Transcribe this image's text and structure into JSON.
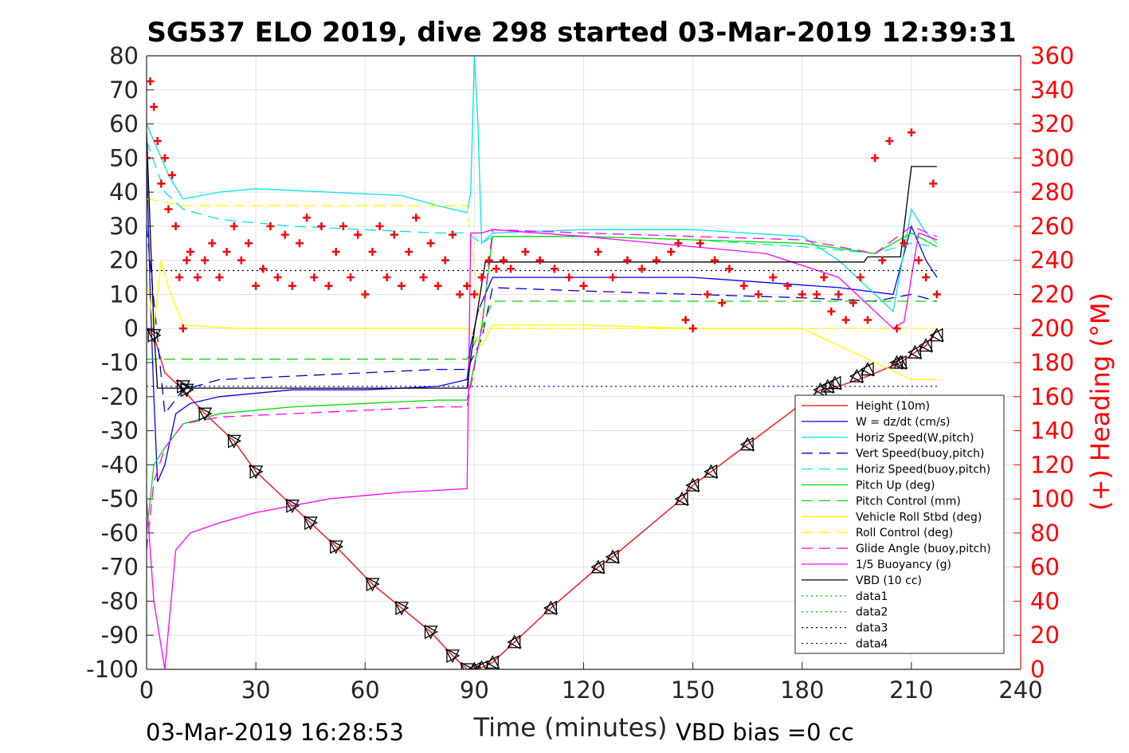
{
  "chart_data": {
    "type": "line",
    "title": "SG537 ELO 2019, dive 298 started 03-Mar-2019 12:39:31",
    "xlabel": "Time (minutes)",
    "ylabel": "",
    "y2label": "(+) Heading (°M)",
    "xlim": [
      0,
      240
    ],
    "ylim": [
      -100,
      80
    ],
    "y2lim": [
      0,
      360
    ],
    "xticks": [
      "0",
      "30",
      "60",
      "90",
      "120",
      "150",
      "180",
      "210",
      "240"
    ],
    "yticks": [
      "80",
      "70",
      "60",
      "50",
      "40",
      "30",
      "20",
      "10",
      "0",
      "-10",
      "-20",
      "-30",
      "-40",
      "-50",
      "-60",
      "-70",
      "-80",
      "-90",
      "-100"
    ],
    "y2ticks": [
      "360",
      "340",
      "320",
      "300",
      "280",
      "260",
      "240",
      "220",
      "200",
      "180",
      "160",
      "140",
      "120",
      "100",
      "80",
      "60",
      "40",
      "20",
      "0"
    ],
    "grid": true,
    "legend_position": "bottom-right",
    "footer_left": "03-Mar-2019 16:28:53",
    "footer_right": "VBD bias =0 cc",
    "series": [
      {
        "name": "Height (10m)",
        "color": "#ff0000",
        "style": "solid",
        "x": [
          0,
          2,
          5,
          10,
          16,
          24,
          30,
          40,
          45,
          52,
          62,
          70,
          78,
          84,
          88,
          92,
          95,
          101,
          111,
          124,
          128,
          147,
          150,
          155,
          165,
          185,
          190,
          198,
          207,
          211,
          214,
          217
        ],
        "y": [
          0,
          -2,
          -13,
          -18,
          -25,
          -33,
          -42,
          -52,
          -57,
          -64,
          -75,
          -82,
          -89,
          -96,
          -100,
          -99.5,
          -98,
          -92,
          -82,
          -70,
          -67,
          -50,
          -46,
          -42,
          -34,
          -18,
          -17,
          -14,
          -10,
          -7,
          -5,
          0
        ]
      },
      {
        "name": "W = dz/dt (cm/s)",
        "color": "#0000ff",
        "style": "solid",
        "x": [
          0,
          1,
          2,
          3,
          5,
          8,
          12,
          20,
          40,
          60,
          80,
          88,
          89,
          91,
          95,
          110,
          150,
          190,
          205,
          210,
          214,
          217
        ],
        "y": [
          50,
          10,
          -20,
          -45,
          -40,
          -25,
          -22,
          -20,
          -18,
          -18,
          -17,
          -15,
          -5,
          5,
          15,
          15,
          15,
          12,
          10,
          30,
          20,
          15
        ]
      },
      {
        "name": "Horiz Speed(W,pitch)",
        "color": "#00e5e5",
        "style": "solid",
        "x": [
          0,
          2,
          4,
          6,
          10,
          20,
          30,
          50,
          70,
          80,
          88,
          89,
          90,
          91,
          92,
          95,
          120,
          150,
          180,
          190,
          200,
          205,
          210,
          214,
          217
        ],
        "y": [
          60,
          55,
          50,
          45,
          38,
          40,
          41,
          40,
          39,
          36,
          34,
          40,
          80,
          60,
          25,
          28,
          29,
          29,
          27,
          20,
          10,
          5,
          35,
          28,
          25
        ]
      },
      {
        "name": "Vert Speed(buoy,pitch)",
        "color": "#0000cc",
        "style": "dashed",
        "x": [
          0,
          5,
          10,
          20,
          40,
          60,
          80,
          88,
          92,
          95,
          120,
          150,
          180,
          200,
          210,
          217
        ],
        "y": [
          30,
          -25,
          -18,
          -15,
          -14,
          -13,
          -12,
          -12,
          -3,
          12,
          11,
          10,
          9,
          8,
          10,
          8
        ]
      },
      {
        "name": "Horiz Speed(buoy,pitch)",
        "color": "#00e5e5",
        "style": "dashed",
        "x": [
          0,
          5,
          10,
          20,
          40,
          60,
          80,
          88,
          92,
          95,
          120,
          150,
          180,
          200,
          210,
          217
        ],
        "y": [
          55,
          40,
          35,
          32,
          30,
          29,
          28,
          28,
          25,
          27,
          27,
          26,
          24,
          22,
          25,
          24
        ]
      },
      {
        "name": "Pitch Up (deg)",
        "color": "#00dd00",
        "style": "solid",
        "x": [
          0,
          2,
          5,
          10,
          20,
          40,
          60,
          80,
          88,
          92,
          95,
          120,
          150,
          180,
          200,
          210,
          217
        ],
        "y": [
          -60,
          -40,
          -35,
          -28,
          -25,
          -23,
          -22,
          -21,
          -21,
          0,
          27,
          27,
          26,
          25,
          22,
          28,
          24
        ]
      },
      {
        "name": "Pitch Control (mm)",
        "color": "#00dd00",
        "style": "dashed",
        "x": [
          0,
          5,
          88,
          92,
          95,
          217
        ],
        "y": [
          -9,
          -9,
          -9,
          0,
          8,
          8
        ]
      },
      {
        "name": "Vehicle Roll Stbd (deg)",
        "color": "#ffff00",
        "style": "solid",
        "x": [
          0,
          2,
          4,
          6,
          10,
          25,
          50,
          75,
          88,
          92,
          95,
          120,
          150,
          180,
          200,
          210,
          217
        ],
        "y": [
          15,
          0,
          20,
          12,
          1,
          0,
          0,
          0,
          0,
          -5,
          1,
          1,
          0,
          0,
          -10,
          -15,
          -15
        ]
      },
      {
        "name": "Roll Control (deg)",
        "color": "#ffff00",
        "style": "dashed",
        "x": [
          0,
          5,
          10,
          88,
          92,
          95,
          217
        ],
        "y": [
          38,
          37,
          36,
          36,
          0,
          0,
          0
        ]
      },
      {
        "name": "Glide Angle (buoy,pitch)",
        "color": "#ff00ff",
        "style": "dashed",
        "x": [
          0,
          2,
          5,
          10,
          20,
          40,
          60,
          80,
          88,
          92,
          95,
          120,
          150,
          180,
          200,
          210,
          217
        ],
        "y": [
          -65,
          -45,
          -35,
          -28,
          -26,
          -25,
          -24,
          -23,
          -23,
          0,
          29,
          28,
          27,
          26,
          22,
          30,
          27
        ]
      },
      {
        "name": "1/5 Buoyancy (g)",
        "color": "#ff00ff",
        "style": "solid",
        "x": [
          0,
          2,
          5,
          8,
          12,
          20,
          30,
          40,
          50,
          60,
          70,
          80,
          88,
          89,
          92,
          95,
          120,
          150,
          170,
          190,
          200,
          205,
          208,
          212,
          217
        ],
        "y": [
          -50,
          -80,
          -100,
          -65,
          -60,
          -57,
          -54,
          -52,
          -50,
          -49,
          -48,
          -47.5,
          -47,
          28,
          28,
          29,
          27,
          24,
          22,
          15,
          5,
          0,
          2,
          28,
          26
        ]
      },
      {
        "name": "VBD (10 cc)",
        "color": "#000000",
        "style": "solid",
        "x": [
          0,
          2,
          3,
          88,
          90,
          93,
          95,
          180,
          197,
          198,
          205,
          207,
          210,
          217
        ],
        "y": [
          58,
          0,
          -17.5,
          -17.5,
          -0.5,
          19.5,
          19.5,
          19.5,
          19.5,
          21,
          21,
          21,
          47.5,
          47.5
        ]
      },
      {
        "name": "data1",
        "color": "#00dd00",
        "style": "dotted",
        "x": [],
        "y": []
      },
      {
        "name": "data2",
        "color": "#00dd00",
        "style": "dotted",
        "x": [],
        "y": []
      },
      {
        "name": "data3",
        "color": "#000000",
        "style": "dotted",
        "x": [
          0,
          217
        ],
        "y": [
          17,
          17
        ]
      },
      {
        "name": "data4",
        "color": "#0000ff",
        "style": "dotted",
        "x": [
          0,
          217
        ],
        "y": [
          -17,
          -17
        ]
      }
    ],
    "heading": {
      "name": "(+) Heading (°M)",
      "color": "#ff0000",
      "marker": "+",
      "x": [
        0,
        1,
        2,
        3,
        4,
        5,
        6,
        7,
        8,
        9,
        10,
        11,
        12,
        14,
        16,
        18,
        20,
        22,
        24,
        26,
        28,
        30,
        32,
        34,
        36,
        38,
        40,
        42,
        44,
        46,
        48,
        50,
        52,
        54,
        56,
        58,
        60,
        62,
        64,
        66,
        68,
        70,
        72,
        74,
        76,
        78,
        80,
        82,
        84,
        86,
        88,
        90,
        92,
        94,
        96,
        98,
        100,
        104,
        108,
        112,
        116,
        120,
        124,
        128,
        132,
        136,
        140,
        144,
        146,
        148,
        150,
        152,
        154,
        156,
        158,
        160,
        164,
        168,
        172,
        176,
        180,
        184,
        186,
        188,
        190,
        192,
        194,
        196,
        198,
        200,
        202,
        204,
        206,
        208,
        210,
        212,
        214,
        216,
        217
      ],
      "y": [
        300,
        345,
        330,
        310,
        285,
        300,
        270,
        290,
        260,
        230,
        200,
        240,
        245,
        230,
        240,
        250,
        230,
        245,
        260,
        240,
        250,
        225,
        235,
        260,
        230,
        255,
        225,
        250,
        265,
        230,
        260,
        225,
        245,
        260,
        230,
        255,
        220,
        245,
        260,
        230,
        255,
        225,
        245,
        265,
        230,
        250,
        225,
        240,
        255,
        220,
        225,
        220,
        230,
        240,
        235,
        240,
        235,
        245,
        240,
        235,
        230,
        225,
        245,
        230,
        240,
        235,
        240,
        245,
        250,
        205,
        200,
        250,
        220,
        240,
        215,
        235,
        225,
        220,
        230,
        225,
        220,
        220,
        230,
        210,
        220,
        205,
        215,
        230,
        205,
        300,
        240,
        310,
        200,
        250,
        315,
        240,
        230,
        285,
        220
      ]
    },
    "markers": {
      "name": "Height markers",
      "color": "#000000",
      "down_x": [
        2,
        10,
        11,
        16,
        24,
        30,
        40,
        45,
        52,
        62,
        70,
        78,
        84,
        88
      ],
      "down_y": [
        -2,
        -17,
        -18,
        -25,
        -33,
        -42,
        -52,
        -57,
        -64,
        -75,
        -82,
        -89,
        -96,
        -100
      ],
      "up_x": [
        90,
        92,
        95,
        101,
        111,
        124,
        128,
        147,
        150,
        155,
        165,
        185,
        187,
        189,
        195,
        198,
        206,
        207,
        211,
        214,
        217
      ],
      "up_y": [
        -100,
        -99.5,
        -98,
        -92,
        -82,
        -70,
        -67,
        -50,
        -46,
        -42,
        -34,
        -18,
        -17,
        -16,
        -14,
        -12,
        -10,
        -10,
        -7,
        -5,
        -2
      ]
    }
  }
}
